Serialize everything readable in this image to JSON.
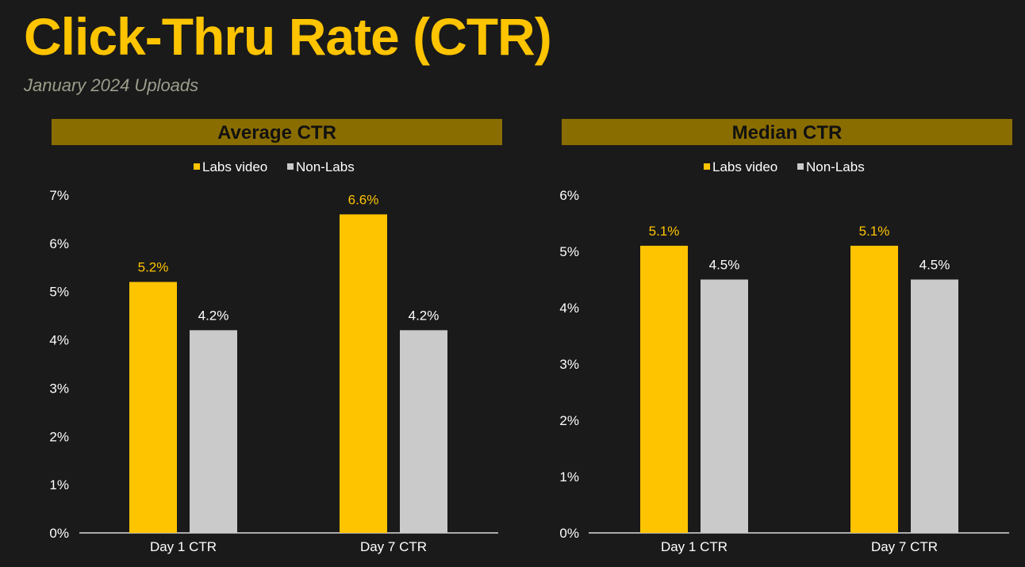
{
  "page": {
    "title": "Click-Thru Rate (CTR)",
    "subtitle": "January 2024 Uploads"
  },
  "colors": {
    "background": "#1a1a1a",
    "accent": "#ffc400",
    "panel_header": "#8a6d00",
    "labs": "#ffc400",
    "non_labs": "#cacaca",
    "text": "#ffffff"
  },
  "chart_data": [
    {
      "type": "bar",
      "title": "Average CTR",
      "categories": [
        "Day 1 CTR",
        "Day 7 CTR"
      ],
      "series": [
        {
          "name": "Labs video",
          "values": [
            5.2,
            6.6
          ],
          "labels": [
            "5.2%",
            "6.6%"
          ],
          "color": "#ffc400"
        },
        {
          "name": "Non-Labs",
          "values": [
            4.2,
            4.2
          ],
          "labels": [
            "4.2%",
            "4.2%"
          ],
          "color": "#cacaca"
        }
      ],
      "ylim": [
        0,
        7
      ],
      "yticks": [
        "0%",
        "1%",
        "2%",
        "3%",
        "4%",
        "5%",
        "6%",
        "7%"
      ],
      "grid": false,
      "legend": "top-center"
    },
    {
      "type": "bar",
      "title": "Median CTR",
      "categories": [
        "Day 1 CTR",
        "Day 7 CTR"
      ],
      "series": [
        {
          "name": "Labs video",
          "values": [
            5.1,
            5.1
          ],
          "labels": [
            "5.1%",
            "5.1%"
          ],
          "color": "#ffc400"
        },
        {
          "name": "Non-Labs",
          "values": [
            4.5,
            4.5
          ],
          "labels": [
            "4.5%",
            "4.5%"
          ],
          "color": "#cacaca"
        }
      ],
      "ylim": [
        0,
        6
      ],
      "yticks": [
        "0%",
        "1%",
        "2%",
        "3%",
        "4%",
        "5%",
        "6%"
      ],
      "grid": false,
      "legend": "top-center"
    }
  ]
}
